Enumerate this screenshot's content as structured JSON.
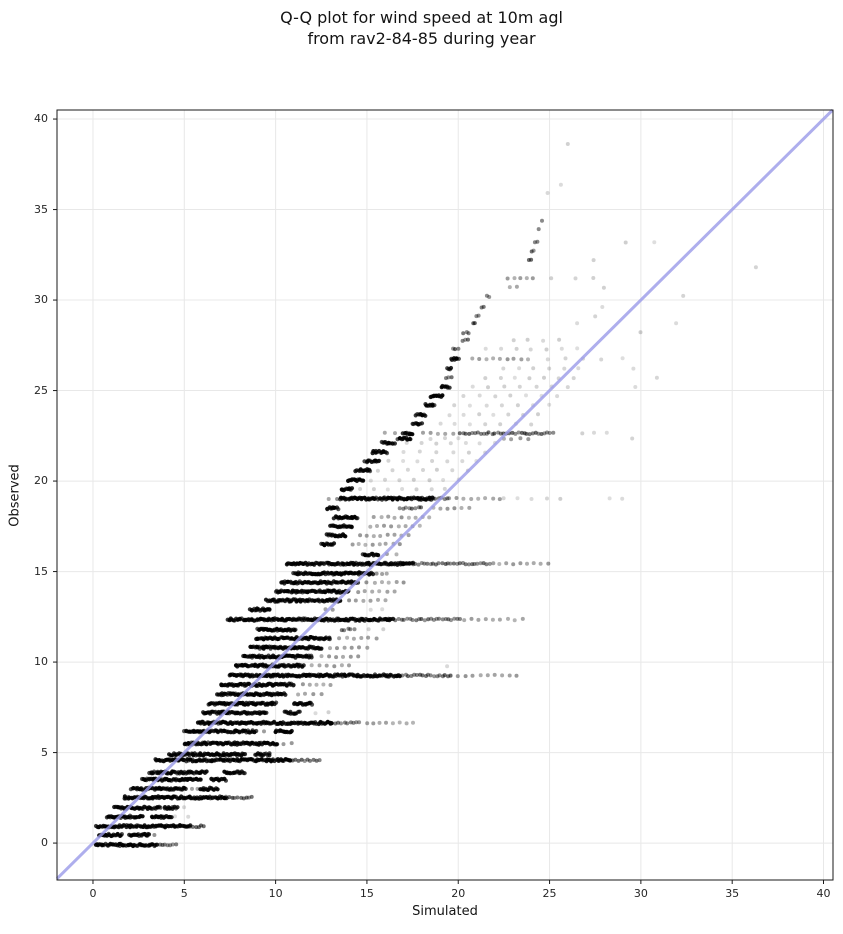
{
  "figure": {
    "title_line1": "Q-Q plot for wind speed at 10m agl",
    "title_line2": "from rav2-84-85 during year"
  },
  "chart_data": {
    "type": "scatter",
    "title": "Q-Q plot for wind speed at 10m agl\nfrom rav2-84-85 during year",
    "xlabel": "Simulated",
    "ylabel": "Observed",
    "xlim": [
      -1.97,
      40.52
    ],
    "ylim": [
      -2.04,
      40.5
    ],
    "xticks": [
      0,
      5,
      10,
      15,
      20,
      25,
      30,
      35,
      40
    ],
    "yticks": [
      0,
      5,
      10,
      15,
      20,
      25,
      30,
      35,
      40
    ],
    "grid": true,
    "legend": "none",
    "colors": {
      "identity_line": "#9a9ae8",
      "marker": "#000000",
      "grid": "#e8e8e8",
      "spine": "#1a1a1a",
      "text": "#141414"
    },
    "identity_line": "y = x",
    "bands_note": "Each band is one discrete observed wind-speed value; segments are [sim_start, sim_end, density] with density d=dark solid, m=medium, s=sparse dots, f=faint",
    "bands": [
      {
        "y": -0.1,
        "segments": [
          [
            0.15,
            3.5,
            "d"
          ],
          [
            3.5,
            4.55,
            "m"
          ]
        ]
      },
      {
        "y": 0.45,
        "segments": [
          [
            0.35,
            1.6,
            "d"
          ],
          [
            2.0,
            3.1,
            "d"
          ],
          [
            3.3,
            3.4,
            "s"
          ]
        ]
      },
      {
        "y": 0.93,
        "segments": [
          [
            0.2,
            5.3,
            "d"
          ],
          [
            5.3,
            6.1,
            "m"
          ]
        ]
      },
      {
        "y": 1.45,
        "segments": [
          [
            0.75,
            2.7,
            "d"
          ],
          [
            3.2,
            4.3,
            "d"
          ],
          [
            4.5,
            5.2,
            "f"
          ]
        ]
      },
      {
        "y": 1.95,
        "segments": [
          [
            1.2,
            3.7,
            "d"
          ],
          [
            3.9,
            4.6,
            "d"
          ],
          [
            4.9,
            5.1,
            "f"
          ]
        ]
      },
      {
        "y": 2.52,
        "segments": [
          [
            1.7,
            7.3,
            "d"
          ],
          [
            7.3,
            8.7,
            "m"
          ]
        ]
      },
      {
        "y": 3.0,
        "segments": [
          [
            2.1,
            5.1,
            "d"
          ],
          [
            5.4,
            5.7,
            "s"
          ],
          [
            5.9,
            6.8,
            "d"
          ]
        ]
      },
      {
        "y": 3.5,
        "segments": [
          [
            2.7,
            5.9,
            "d"
          ],
          [
            6.5,
            7.3,
            "d"
          ]
        ]
      },
      {
        "y": 3.9,
        "segments": [
          [
            3.1,
            6.2,
            "d"
          ],
          [
            7.2,
            8.3,
            "d"
          ]
        ]
      },
      {
        "y": 4.58,
        "segments": [
          [
            3.4,
            10.8,
            "d"
          ],
          [
            10.8,
            12.4,
            "m"
          ]
        ]
      },
      {
        "y": 4.9,
        "segments": [
          [
            4.2,
            8.3,
            "d"
          ],
          [
            8.9,
            9.7,
            "d"
          ]
        ]
      },
      {
        "y": 5.5,
        "segments": [
          [
            5.0,
            10.1,
            "d"
          ],
          [
            10.4,
            10.9,
            "s"
          ]
        ]
      },
      {
        "y": 6.17,
        "segments": [
          [
            5.0,
            8.9,
            "d"
          ],
          [
            9.3,
            9.4,
            "s"
          ],
          [
            10.0,
            10.9,
            "d"
          ]
        ]
      },
      {
        "y": 6.64,
        "segments": [
          [
            5.75,
            13.1,
            "d"
          ],
          [
            13.1,
            14.6,
            "m"
          ],
          [
            15.0,
            17.5,
            "s"
          ]
        ]
      },
      {
        "y": 7.2,
        "segments": [
          [
            6.0,
            9.5,
            "d"
          ],
          [
            10.5,
            11.3,
            "d"
          ],
          [
            12.2,
            12.9,
            "f"
          ]
        ]
      },
      {
        "y": 7.7,
        "segments": [
          [
            6.3,
            10.0,
            "d"
          ],
          [
            11.0,
            12.0,
            "d"
          ]
        ]
      },
      {
        "y": 8.23,
        "segments": [
          [
            6.8,
            10.5,
            "d"
          ],
          [
            11.2,
            12.5,
            "s"
          ]
        ]
      },
      {
        "y": 8.75,
        "segments": [
          [
            7.0,
            11.0,
            "d"
          ],
          [
            11.5,
            13.0,
            "s"
          ]
        ]
      },
      {
        "y": 9.26,
        "segments": [
          [
            7.45,
            16.8,
            "d"
          ],
          [
            16.8,
            19.6,
            "m"
          ],
          [
            19.6,
            23.2,
            "s"
          ]
        ]
      },
      {
        "y": 9.8,
        "segments": [
          [
            7.8,
            11.5,
            "d"
          ],
          [
            12.0,
            14.0,
            "s"
          ],
          [
            19.3,
            19.5,
            "f"
          ]
        ]
      },
      {
        "y": 10.3,
        "segments": [
          [
            8.2,
            12.0,
            "d"
          ],
          [
            12.5,
            14.5,
            "s"
          ]
        ]
      },
      {
        "y": 10.8,
        "segments": [
          [
            8.6,
            12.5,
            "d"
          ],
          [
            13.0,
            15.0,
            "s"
          ]
        ]
      },
      {
        "y": 11.32,
        "segments": [
          [
            8.9,
            13.0,
            "d"
          ],
          [
            13.5,
            15.5,
            "s"
          ]
        ]
      },
      {
        "y": 11.8,
        "segments": [
          [
            9.0,
            11.1,
            "d"
          ],
          [
            13.6,
            14.3,
            "m"
          ],
          [
            15.1,
            15.9,
            "f"
          ]
        ]
      },
      {
        "y": 12.35,
        "segments": [
          [
            7.4,
            16.4,
            "d"
          ],
          [
            16.4,
            20.1,
            "m"
          ],
          [
            20.3,
            23.5,
            "s"
          ]
        ]
      },
      {
        "y": 12.9,
        "segments": [
          [
            8.6,
            9.7,
            "d"
          ],
          [
            12.7,
            13.1,
            "s"
          ],
          [
            15.2,
            15.8,
            "f"
          ]
        ]
      },
      {
        "y": 13.4,
        "segments": [
          [
            9.5,
            13.5,
            "d"
          ],
          [
            14.0,
            16.0,
            "s"
          ]
        ]
      },
      {
        "y": 13.9,
        "segments": [
          [
            10.0,
            14.0,
            "d"
          ],
          [
            14.5,
            16.5,
            "s"
          ]
        ]
      },
      {
        "y": 14.4,
        "segments": [
          [
            10.3,
            14.5,
            "d"
          ],
          [
            15.0,
            17.0,
            "s"
          ]
        ]
      },
      {
        "y": 14.9,
        "segments": [
          [
            11.0,
            15.3,
            "d"
          ],
          [
            15.5,
            16.1,
            "s"
          ]
        ]
      },
      {
        "y": 15.43,
        "segments": [
          [
            10.6,
            17.5,
            "d"
          ],
          [
            17.5,
            21.7,
            "m"
          ],
          [
            21.9,
            24.9,
            "s"
          ]
        ]
      },
      {
        "y": 15.95,
        "segments": [
          [
            14.8,
            15.6,
            "d"
          ],
          [
            16.1,
            16.6,
            "s"
          ]
        ]
      },
      {
        "y": 16.5,
        "segments": [
          [
            12.5,
            13.2,
            "d"
          ],
          [
            14.2,
            16.8,
            "s"
          ]
        ]
      },
      {
        "y": 17.0,
        "segments": [
          [
            12.8,
            13.8,
            "d"
          ],
          [
            14.6,
            17.3,
            "s"
          ]
        ]
      },
      {
        "y": 17.5,
        "segments": [
          [
            13.0,
            14.2,
            "d"
          ],
          [
            15.2,
            17.9,
            "s"
          ]
        ]
      },
      {
        "y": 18.0,
        "segments": [
          [
            13.2,
            14.5,
            "d"
          ],
          [
            15.4,
            18.4,
            "s"
          ]
        ]
      },
      {
        "y": 18.5,
        "segments": [
          [
            12.8,
            13.4,
            "d"
          ],
          [
            16.8,
            18.0,
            "m"
          ],
          [
            18.6,
            20.6,
            "s"
          ]
        ]
      },
      {
        "y": 19.03,
        "segments": [
          [
            12.9,
            13.4,
            "s"
          ],
          [
            13.5,
            18.6,
            "d"
          ],
          [
            18.6,
            19.4,
            "m"
          ],
          [
            19.5,
            22.3,
            "s"
          ],
          [
            22.5,
            25.6,
            "f"
          ],
          [
            28.3,
            29.0,
            "f"
          ]
        ]
      },
      {
        "y": 19.55,
        "segments": [
          [
            13.6,
            14.2,
            "d"
          ],
          [
            14.6,
            19.3,
            "f"
          ]
        ]
      },
      {
        "y": 20.06,
        "segments": [
          [
            14.0,
            14.8,
            "d"
          ],
          [
            15.2,
            20.0,
            "f"
          ]
        ]
      },
      {
        "y": 20.6,
        "segments": [
          [
            14.4,
            15.2,
            "d"
          ],
          [
            15.6,
            20.5,
            "f"
          ]
        ]
      },
      {
        "y": 21.1,
        "segments": [
          [
            14.9,
            15.7,
            "d"
          ],
          [
            16.2,
            21.0,
            "f"
          ]
        ]
      },
      {
        "y": 21.6,
        "segments": [
          [
            15.3,
            16.1,
            "d"
          ],
          [
            17.0,
            21.5,
            "f"
          ]
        ]
      },
      {
        "y": 22.1,
        "segments": [
          [
            15.8,
            16.5,
            "d"
          ],
          [
            17.2,
            22.0,
            "f"
          ]
        ]
      },
      {
        "y": 22.35,
        "segments": [
          [
            16.7,
            17.4,
            "d"
          ],
          [
            18.5,
            20.0,
            "f"
          ],
          [
            22.5,
            23.8,
            "s"
          ],
          [
            29.5,
            29.5,
            "f"
          ]
        ]
      },
      {
        "y": 22.64,
        "segments": [
          [
            16.0,
            16.5,
            "s"
          ],
          [
            17.0,
            17.5,
            "d"
          ],
          [
            18.1,
            19.7,
            "s"
          ],
          [
            20.1,
            25.2,
            "m"
          ],
          [
            26.8,
            28.1,
            "f"
          ]
        ]
      },
      {
        "y": 23.15,
        "segments": [
          [
            17.5,
            18.0,
            "d"
          ],
          [
            19.0,
            24.0,
            "f"
          ]
        ]
      },
      {
        "y": 23.66,
        "segments": [
          [
            17.7,
            18.2,
            "d"
          ],
          [
            19.5,
            24.4,
            "f"
          ]
        ]
      },
      {
        "y": 24.2,
        "segments": [
          [
            18.2,
            18.7,
            "d"
          ],
          [
            19.8,
            25.0,
            "f"
          ]
        ]
      },
      {
        "y": 24.7,
        "segments": [
          [
            18.5,
            19.1,
            "d"
          ],
          [
            20.3,
            25.4,
            "f"
          ]
        ]
      },
      {
        "y": 25.2,
        "segments": [
          [
            19.1,
            19.5,
            "d"
          ],
          [
            20.8,
            26.0,
            "f"
          ],
          [
            29.7,
            29.7,
            "f"
          ]
        ]
      },
      {
        "y": 25.7,
        "segments": [
          [
            19.3,
            19.6,
            "m"
          ],
          [
            21.5,
            26.3,
            "f"
          ],
          [
            30.9,
            30.9,
            "f"
          ]
        ]
      },
      {
        "y": 26.2,
        "segments": [
          [
            19.4,
            19.6,
            "d"
          ],
          [
            22.5,
            26.6,
            "f"
          ],
          [
            29.6,
            29.6,
            "f"
          ]
        ]
      },
      {
        "y": 26.75,
        "segments": [
          [
            19.6,
            20.0,
            "d"
          ],
          [
            20.8,
            23.8,
            "s"
          ],
          [
            24.9,
            27.8,
            "f"
          ],
          [
            29.0,
            29.0,
            "f"
          ]
        ]
      },
      {
        "y": 27.3,
        "segments": [
          [
            19.7,
            20.0,
            "m"
          ],
          [
            21.5,
            26.5,
            "f"
          ]
        ]
      },
      {
        "y": 27.78,
        "segments": [
          [
            20.2,
            20.5,
            "m"
          ],
          [
            23.0,
            25.5,
            "f"
          ]
        ]
      },
      {
        "y": 28.2,
        "segments": [
          [
            20.3,
            20.6,
            "m"
          ],
          [
            30.0,
            30.0,
            "f"
          ]
        ]
      },
      {
        "y": 28.7,
        "segments": [
          [
            20.8,
            20.9,
            "m"
          ],
          [
            26.5,
            26.5,
            "f"
          ],
          [
            31.9,
            31.9,
            "f"
          ]
        ]
      },
      {
        "y": 29.1,
        "segments": [
          [
            21.0,
            21.1,
            "m"
          ],
          [
            27.5,
            27.5,
            "f"
          ]
        ]
      },
      {
        "y": 29.6,
        "segments": [
          [
            21.3,
            21.4,
            "m"
          ],
          [
            27.9,
            27.9,
            "f"
          ]
        ]
      },
      {
        "y": 30.2,
        "segments": [
          [
            21.6,
            21.7,
            "m"
          ],
          [
            32.3,
            32.3,
            "f"
          ]
        ]
      },
      {
        "y": 30.7,
        "segments": [
          [
            22.8,
            23.2,
            "s"
          ],
          [
            28.0,
            28.0,
            "f"
          ]
        ]
      },
      {
        "y": 31.2,
        "segments": [
          [
            22.7,
            24.1,
            "s"
          ],
          [
            25.1,
            25.1,
            "f"
          ],
          [
            26.4,
            26.4,
            "f"
          ],
          [
            27.4,
            27.4,
            "f"
          ]
        ]
      },
      {
        "y": 31.8,
        "segments": [
          [
            36.3,
            36.3,
            "f"
          ]
        ]
      },
      {
        "y": 32.2,
        "segments": [
          [
            23.9,
            24.0,
            "m"
          ],
          [
            27.4,
            27.4,
            "f"
          ]
        ]
      },
      {
        "y": 32.7,
        "segments": [
          [
            24.0,
            24.1,
            "m"
          ]
        ]
      },
      {
        "y": 33.2,
        "segments": [
          [
            24.2,
            24.3,
            "m"
          ],
          [
            29.2,
            29.2,
            "f"
          ],
          [
            30.7,
            30.7,
            "f"
          ]
        ]
      },
      {
        "y": 33.9,
        "segments": [
          [
            24.4,
            24.4,
            "m"
          ]
        ]
      },
      {
        "y": 34.4,
        "segments": [
          [
            24.6,
            24.6,
            "m"
          ]
        ]
      },
      {
        "y": 35.9,
        "segments": [
          [
            24.7,
            25.1,
            "f"
          ]
        ]
      },
      {
        "y": 36.4,
        "segments": [
          [
            25.6,
            25.6,
            "f"
          ]
        ]
      },
      {
        "y": 38.6,
        "segments": [
          [
            26.0,
            26.0,
            "f"
          ]
        ]
      }
    ]
  }
}
